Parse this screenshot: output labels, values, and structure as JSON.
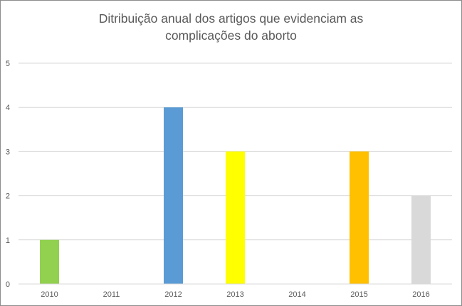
{
  "chart_data": {
    "type": "bar",
    "title_lines": [
      "Ditribuição anual dos artigos que evidenciam as",
      "complicações do aborto"
    ],
    "categories": [
      "2010",
      "2011",
      "2012",
      "2013",
      "2014",
      "2015",
      "2016"
    ],
    "values": [
      1,
      0,
      4,
      3,
      0,
      3,
      2
    ],
    "bar_colors": [
      "#92d050",
      "#5b9bd5",
      "#5b9bd5",
      "#ffff00",
      "#5b9bd5",
      "#ffc000",
      "#d9d9d9"
    ],
    "ylim": [
      0,
      5
    ],
    "yticks": [
      0,
      1,
      2,
      3,
      4,
      5
    ],
    "grid": true,
    "legend": "none"
  }
}
